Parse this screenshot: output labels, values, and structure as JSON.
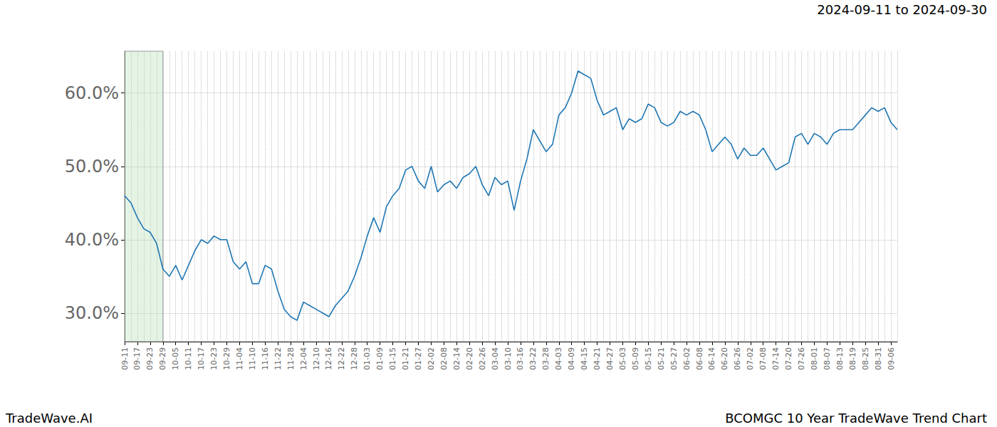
{
  "chart_data": {
    "type": "line",
    "title": "BCOMGC 10 Year TradeWave Trend Chart",
    "subtitle": "2024-09-11 to 2024-09-30",
    "annotations": [
      "TradeWave.AI"
    ],
    "shaded_range": [
      "09-11",
      "09-29"
    ],
    "categories": [
      "09-11",
      null,
      "09-17",
      null,
      "09-23",
      null,
      "09-29",
      null,
      "10-05",
      null,
      "10-11",
      null,
      "10-17",
      null,
      "10-23",
      null,
      "10-29",
      null,
      "11-04",
      null,
      "11-10",
      null,
      "11-16",
      null,
      "11-22",
      null,
      "11-28",
      null,
      "12-04",
      null,
      "12-10",
      null,
      "12-16",
      null,
      "12-22",
      null,
      "12-28",
      null,
      "01-03",
      null,
      "01-09",
      null,
      "01-15",
      null,
      "01-21",
      null,
      "01-27",
      null,
      "02-02",
      null,
      "02-08",
      null,
      "02-14",
      null,
      "02-20",
      null,
      "02-26",
      null,
      "03-04",
      null,
      "03-10",
      null,
      "03-16",
      null,
      "03-22",
      null,
      "03-28",
      null,
      "04-03",
      null,
      "04-09",
      null,
      "04-15",
      null,
      "04-21",
      null,
      "04-27",
      null,
      "05-03",
      null,
      "05-09",
      null,
      "05-15",
      null,
      "05-21",
      null,
      "05-27",
      null,
      "06-02",
      null,
      "06-08",
      null,
      "06-14",
      null,
      "06-20",
      null,
      "06-26",
      null,
      "07-02",
      null,
      "07-08",
      null,
      "07-14",
      null,
      "07-20",
      null,
      "07-26",
      null,
      "08-01",
      null,
      "08-07",
      null,
      "08-13",
      null,
      "08-19",
      null,
      "08-25",
      null,
      "08-31",
      null,
      "09-06",
      null
    ],
    "values": [
      46,
      45,
      43,
      41.5,
      41,
      39.5,
      36,
      35,
      36.5,
      34.5,
      36.5,
      38.5,
      40,
      39.5,
      40.5,
      40,
      40,
      37,
      36,
      37,
      34,
      34,
      36.5,
      36,
      33,
      30.5,
      29.5,
      29,
      31.5,
      31,
      30.5,
      30,
      29.5,
      31,
      32,
      33,
      35,
      37.5,
      40.5,
      43,
      41,
      44.5,
      46,
      47,
      49.5,
      50,
      48,
      47,
      50,
      46.5,
      47.5,
      48,
      47,
      48.5,
      49,
      50,
      47.5,
      46,
      48.5,
      47.5,
      48,
      44,
      48,
      51,
      55,
      53.5,
      52,
      53,
      57,
      58,
      60,
      63,
      62.5,
      62,
      59,
      57,
      57.5,
      58,
      55,
      56.5,
      56,
      56.5,
      58.5,
      58,
      56,
      55.5,
      56,
      57.5,
      57,
      57.5,
      57,
      55,
      52,
      53,
      54,
      53,
      51,
      52.5,
      51.5,
      51.5,
      52.5,
      51,
      49.5,
      50,
      50.5,
      54,
      54.5,
      53,
      54.5,
      54,
      53,
      54.5,
      55,
      55,
      55,
      56,
      57,
      58,
      57.5,
      58,
      56,
      55
    ],
    "color": "#1f77b4",
    "ylim": [
      26.1,
      65.7
    ],
    "yticks": [
      {
        "value": 30,
        "label": "30.0%"
      },
      {
        "value": 40,
        "label": "40.0%"
      },
      {
        "value": 50,
        "label": "50.0%"
      },
      {
        "value": 60,
        "label": "60.0%"
      }
    ],
    "grid": true
  }
}
